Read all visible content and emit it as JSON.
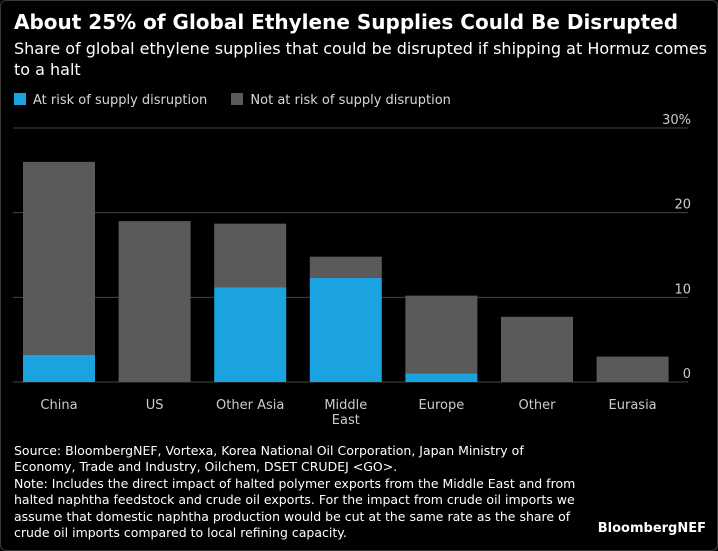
{
  "header": {
    "title": "About 25% of Global Ethylene Supplies Could Be Disrupted",
    "subtitle": "Share of global ethylene supplies that could be disrupted if shipping at Hormuz comes to a halt"
  },
  "legend": {
    "at_risk": "At risk of supply disruption",
    "not_at_risk": "Not at risk of supply disruption"
  },
  "colors": {
    "at_risk": "#1ba3e0",
    "not_at_risk": "#5a5a5a",
    "gridline": "#444444",
    "tick_text": "#cccccc"
  },
  "chart_data": {
    "type": "bar",
    "stacked": true,
    "categories": [
      "China",
      "US",
      "Other Asia",
      "Middle East",
      "Europe",
      "Other",
      "Eurasia"
    ],
    "category_lines": [
      [
        "China"
      ],
      [
        "US"
      ],
      [
        "Other Asia"
      ],
      [
        "Middle",
        "East"
      ],
      [
        "Europe"
      ],
      [
        "Other"
      ],
      [
        "Eurasia"
      ]
    ],
    "series": [
      {
        "name": "At risk of supply disruption",
        "values": [
          3.2,
          0,
          11.2,
          12.3,
          1.0,
          0,
          0
        ]
      },
      {
        "name": "Not at risk of supply disruption",
        "values": [
          22.8,
          19.0,
          7.5,
          2.5,
          9.2,
          7.7,
          3.0
        ]
      }
    ],
    "ylim": [
      0,
      30
    ],
    "yticks": [
      0,
      10,
      20,
      30
    ],
    "ytick_labels": [
      "0",
      "10",
      "20",
      "30%"
    ],
    "y_axis_side": "right",
    "grid": true,
    "title": "About 25% of Global Ethylene Supplies Could Be Disrupted",
    "xlabel": "",
    "ylabel": ""
  },
  "footer": {
    "source_lines": [
      "Source: BloombergNEF, Vortexa, Korea National Oil Corporation, Japan Ministry of",
      "Economy, Trade and Industry, Oilchem, DSET CRUDEJ <GO>.",
      "Note: Includes the direct impact of halted polymer exports from the Middle East and from",
      "halted naphtha feedstock and crude oil exports. For the impact from crude oil imports we",
      "assume that domestic naphtha production would be cut at the same rate as the share of",
      "crude oil imports compared to local refining capacity."
    ],
    "brand": "BloombergNEF"
  }
}
